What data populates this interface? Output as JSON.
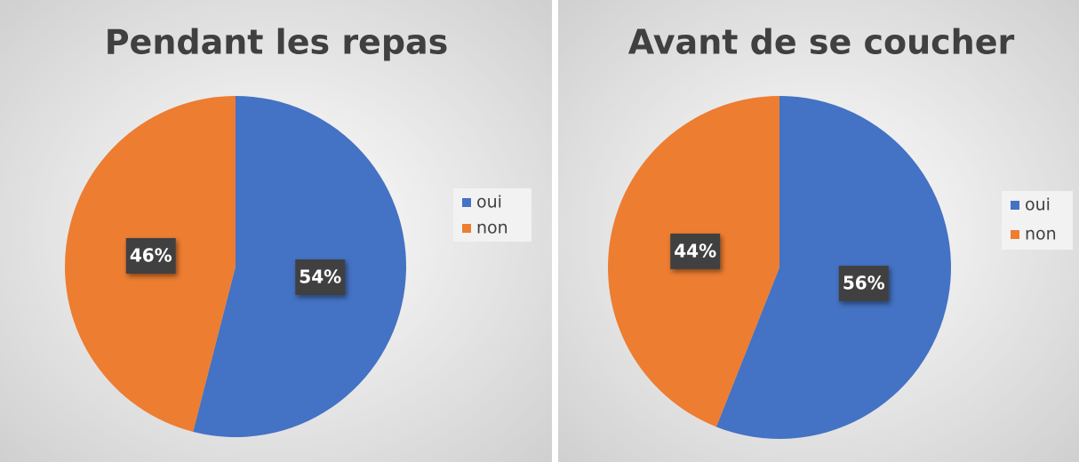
{
  "chart_data": [
    {
      "type": "pie",
      "title": "Pendant les repas",
      "categories": [
        "oui",
        "non"
      ],
      "values": [
        54,
        46
      ],
      "value_labels": [
        "54%",
        "46%"
      ],
      "colors": [
        "#4472c4",
        "#ed7d31"
      ],
      "legend": "right"
    },
    {
      "type": "pie",
      "title": "Avant de se coucher",
      "categories": [
        "oui",
        "non"
      ],
      "values": [
        56,
        44
      ],
      "value_labels": [
        "56%",
        "44%"
      ],
      "colors": [
        "#4472c4",
        "#ed7d31"
      ],
      "legend": "right"
    }
  ]
}
